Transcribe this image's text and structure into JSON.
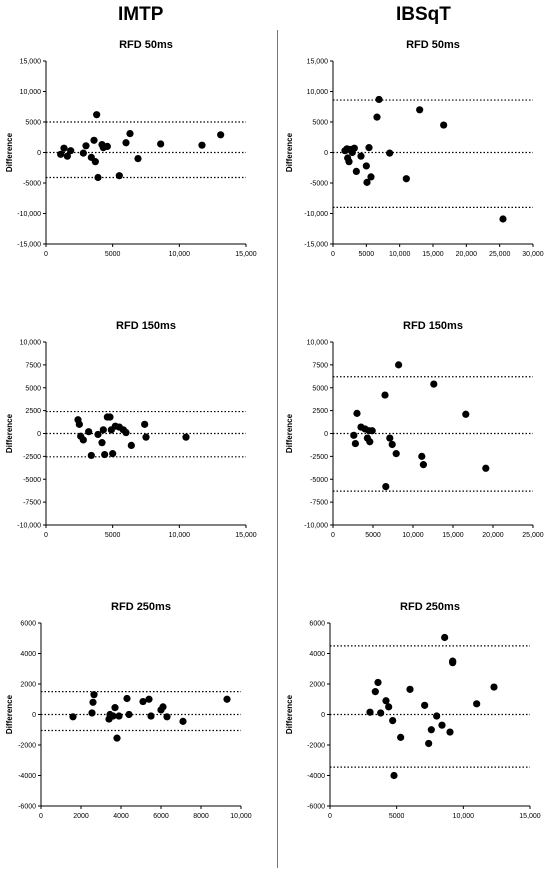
{
  "columns": [
    {
      "title": "IMTP"
    },
    {
      "title": "IBSqT"
    }
  ],
  "chart_data": [
    {
      "type": "scatter",
      "title": "RFD 50ms",
      "ylabel": "Difference",
      "xlabel": "",
      "xlim": [
        0,
        15000
      ],
      "ylim": [
        -15000,
        15000
      ],
      "xticks": [
        0,
        5000,
        10000,
        15000
      ],
      "xtick_labels": [
        "0",
        "5000",
        "10,000",
        "15,000"
      ],
      "yticks": [
        -15000,
        -10000,
        -5000,
        0,
        5000,
        10000,
        15000
      ],
      "ytick_labels": [
        "-15,000",
        "-10,000",
        "-5000",
        "0",
        "5000",
        "10,000",
        "15,000"
      ],
      "mean": 0,
      "upper_loa": 5000,
      "lower_loa": -4100,
      "points": [
        [
          1100,
          -300
        ],
        [
          1350,
          700
        ],
        [
          1600,
          -600
        ],
        [
          1850,
          300
        ],
        [
          2800,
          -100
        ],
        [
          3000,
          1100
        ],
        [
          3400,
          -800
        ],
        [
          3600,
          2000
        ],
        [
          3700,
          -1500
        ],
        [
          3800,
          6200
        ],
        [
          3900,
          -4100
        ],
        [
          4200,
          1300
        ],
        [
          4300,
          800
        ],
        [
          4600,
          1000
        ],
        [
          5500,
          -3800
        ],
        [
          6000,
          1600
        ],
        [
          6300,
          3100
        ],
        [
          6900,
          -1000
        ],
        [
          8600,
          1400
        ],
        [
          11700,
          1200
        ],
        [
          13100,
          2900
        ]
      ]
    },
    {
      "type": "scatter",
      "title": "RFD 50ms",
      "ylabel": "Difference",
      "xlabel": "",
      "xlim": [
        0,
        30000
      ],
      "ylim": [
        -15000,
        15000
      ],
      "xticks": [
        0,
        5000,
        10000,
        15000,
        20000,
        25000,
        30000
      ],
      "xtick_labels": [
        "0",
        "5000",
        "10,000",
        "15,000",
        "20,000",
        "25,000",
        "30,000"
      ],
      "yticks": [
        -15000,
        -10000,
        -5000,
        0,
        5000,
        10000,
        15000
      ],
      "ytick_labels": [
        "-15,000",
        "-10,000",
        "-5000",
        "0",
        "5000",
        "10,000",
        "15,000"
      ],
      "mean": 0,
      "upper_loa": 8600,
      "lower_loa": -9000,
      "points": [
        [
          1800,
          300
        ],
        [
          2100,
          600
        ],
        [
          2200,
          -900
        ],
        [
          2400,
          -1500
        ],
        [
          2600,
          500
        ],
        [
          2900,
          0
        ],
        [
          3200,
          700
        ],
        [
          3500,
          -3100
        ],
        [
          4200,
          -600
        ],
        [
          5000,
          -2200
        ],
        [
          5100,
          -4900
        ],
        [
          5400,
          800
        ],
        [
          5700,
          -4000
        ],
        [
          6600,
          5800
        ],
        [
          6900,
          8700
        ],
        [
          8500,
          -100
        ],
        [
          11000,
          -4300
        ],
        [
          13000,
          7000
        ],
        [
          16600,
          4500
        ],
        [
          25500,
          -10900
        ]
      ]
    },
    {
      "type": "scatter",
      "title": "RFD 150ms",
      "ylabel": "Difference",
      "xlabel": "",
      "xlim": [
        0,
        15000
      ],
      "ylim": [
        -10000,
        10000
      ],
      "xticks": [
        0,
        5000,
        10000,
        15000
      ],
      "xtick_labels": [
        "0",
        "5000",
        "10,000",
        "15,000"
      ],
      "yticks": [
        -10000,
        -7500,
        -5000,
        -2500,
        0,
        2500,
        5000,
        7500,
        10000
      ],
      "ytick_labels": [
        "-10,000",
        "-7500",
        "-5000",
        "-2500",
        "0",
        "2500",
        "5000",
        "7500",
        "10,000"
      ],
      "mean": 0,
      "upper_loa": 2400,
      "lower_loa": -2550,
      "points": [
        [
          2400,
          1500
        ],
        [
          2500,
          1000
        ],
        [
          2600,
          -300
        ],
        [
          2800,
          -700
        ],
        [
          3200,
          200
        ],
        [
          3400,
          -2400
        ],
        [
          3900,
          -100
        ],
        [
          4200,
          -1000
        ],
        [
          4300,
          400
        ],
        [
          4400,
          -2300
        ],
        [
          4600,
          1800
        ],
        [
          4800,
          1800
        ],
        [
          4900,
          400
        ],
        [
          5000,
          -2200
        ],
        [
          5200,
          800
        ],
        [
          5500,
          700
        ],
        [
          5800,
          400
        ],
        [
          6000,
          100
        ],
        [
          6400,
          -1300
        ],
        [
          7400,
          1000
        ],
        [
          7500,
          -400
        ],
        [
          10500,
          -400
        ]
      ]
    },
    {
      "type": "scatter",
      "title": "RFD 150ms",
      "ylabel": "Difference",
      "xlabel": "",
      "xlim": [
        0,
        25000
      ],
      "ylim": [
        -10000,
        10000
      ],
      "xticks": [
        0,
        5000,
        10000,
        15000,
        20000,
        25000
      ],
      "xtick_labels": [
        "0",
        "5000",
        "10,000",
        "15,000",
        "20,000",
        "25,000"
      ],
      "yticks": [
        -10000,
        -7500,
        -5000,
        -2500,
        0,
        2500,
        5000,
        7500,
        10000
      ],
      "ytick_labels": [
        "-10,000",
        "-7500",
        "-5000",
        "-2500",
        "0",
        "2500",
        "5000",
        "7500",
        "10,000"
      ],
      "mean": 0,
      "upper_loa": 6200,
      "lower_loa": -6300,
      "points": [
        [
          2600,
          -200
        ],
        [
          2800,
          -1100
        ],
        [
          3000,
          2200
        ],
        [
          3500,
          700
        ],
        [
          4000,
          500
        ],
        [
          4300,
          -500
        ],
        [
          4500,
          300
        ],
        [
          4600,
          -900
        ],
        [
          4900,
          300
        ],
        [
          6500,
          4200
        ],
        [
          6600,
          -5800
        ],
        [
          7100,
          -500
        ],
        [
          7400,
          -1200
        ],
        [
          7900,
          -2200
        ],
        [
          8200,
          7500
        ],
        [
          11100,
          -2500
        ],
        [
          11300,
          -3400
        ],
        [
          12600,
          5400
        ],
        [
          16600,
          2100
        ],
        [
          19100,
          -3800
        ]
      ]
    },
    {
      "type": "scatter",
      "title": "RFD 250ms",
      "ylabel": "Difference",
      "xlabel": "",
      "xlim": [
        0,
        10000
      ],
      "ylim": [
        -6000,
        6000
      ],
      "xticks": [
        0,
        2000,
        4000,
        6000,
        8000,
        10000
      ],
      "xtick_labels": [
        "0",
        "2000",
        "4000",
        "6000",
        "8000",
        "10,000"
      ],
      "yticks": [
        -6000,
        -4000,
        -2000,
        0,
        2000,
        4000,
        6000
      ],
      "ytick_labels": [
        "-6000",
        "-4000",
        "-2000",
        "0",
        "2000",
        "4000",
        "6000"
      ],
      "mean": 0,
      "upper_loa": 1500,
      "lower_loa": -1050,
      "points": [
        [
          1600,
          -150
        ],
        [
          2550,
          100
        ],
        [
          2600,
          800
        ],
        [
          2650,
          1300
        ],
        [
          3400,
          -300
        ],
        [
          3450,
          0
        ],
        [
          3600,
          -100
        ],
        [
          3700,
          450
        ],
        [
          3800,
          -1550
        ],
        [
          3900,
          -100
        ],
        [
          4300,
          1050
        ],
        [
          4400,
          0
        ],
        [
          5100,
          850
        ],
        [
          5400,
          1000
        ],
        [
          5500,
          -100
        ],
        [
          6000,
          300
        ],
        [
          6100,
          500
        ],
        [
          6300,
          -150
        ],
        [
          7100,
          -450
        ],
        [
          9300,
          1000
        ]
      ]
    },
    {
      "type": "scatter",
      "title": "RFD 250ms",
      "ylabel": "Difference",
      "xlabel": "",
      "xlim": [
        0,
        15000
      ],
      "ylim": [
        -6000,
        6000
      ],
      "xticks": [
        0,
        5000,
        10000,
        15000
      ],
      "xtick_labels": [
        "0",
        "5000",
        "10,000",
        "15,000"
      ],
      "yticks": [
        -6000,
        -4000,
        -2000,
        0,
        2000,
        4000,
        6000
      ],
      "ytick_labels": [
        "-6000",
        "-4000",
        "-2000",
        "0",
        "2000",
        "4000",
        "6000"
      ],
      "mean": 0,
      "upper_loa": 4500,
      "lower_loa": -3450,
      "points": [
        [
          3000,
          150
        ],
        [
          3400,
          1500
        ],
        [
          3600,
          2100
        ],
        [
          3800,
          100
        ],
        [
          4200,
          900
        ],
        [
          4400,
          500
        ],
        [
          4700,
          -400
        ],
        [
          4800,
          -4000
        ],
        [
          5300,
          -1500
        ],
        [
          6000,
          1650
        ],
        [
          7100,
          600
        ],
        [
          7400,
          -1900
        ],
        [
          7600,
          -1000
        ],
        [
          8000,
          -100
        ],
        [
          8400,
          -700
        ],
        [
          8600,
          5050
        ],
        [
          9000,
          -1150
        ],
        [
          9200,
          3500
        ],
        [
          9200,
          3400
        ],
        [
          11000,
          700
        ],
        [
          12300,
          1800
        ]
      ]
    }
  ]
}
